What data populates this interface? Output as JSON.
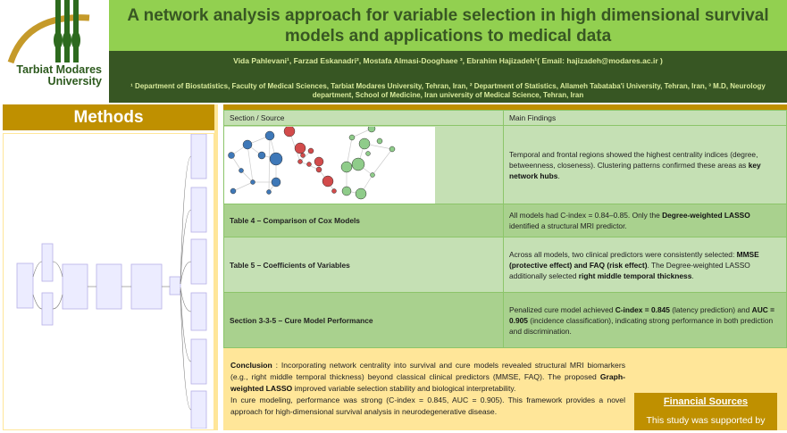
{
  "logo": {
    "text_line1": "Tarbiat Modares",
    "text_line2": "University"
  },
  "title": "A network analysis approach for variable selection in high dimensional survival models and applications to medical data",
  "authors": "Vida Pahlevani¹, Farzad Eskanadri², Mostafa Almasi-Dooghaee ³, Ebrahim Hajizadeh¹( Email: hajizadeh@modares.ac.ir )",
  "affiliations": "¹ Department of Biostatistics, Faculty of Medical Sciences, Tarbiat Modares University, Tehran, Iran, ² Department of Statistics, Allameh Tabataba'i University, Tehran, Iran, ³ M.D, Neurology department, School of Medicine, Iran university of Medical Science, Tehran, Iran",
  "methods": {
    "heading": "Methods"
  },
  "table": {
    "headers": [
      "Section / Source",
      "Main Findings"
    ],
    "rows": [
      {
        "source": "",
        "findings_pre": "Temporal and frontal regions showed the highest centrality indices (degree, betweenness, closeness). Clustering patterns confirmed these areas as ",
        "findings_bold": "key network hubs",
        "findings_post": "."
      },
      {
        "source": "Table 4 – Comparison of Cox Models",
        "findings_pre": "All models had C-index = 0.84–0.85. Only the ",
        "findings_bold": "Degree-weighted LASSO",
        "findings_post": " identified a structural MRI predictor."
      },
      {
        "source": "Table 5 – Coefficients of Variables",
        "findings_pre": "Across all models, two clinical predictors were consistently selected: ",
        "findings_bold": "MMSE (protective effect) and FAQ (risk effect)",
        "findings_post": ". The Degree-weighted LASSO additionally selected ",
        "findings_bold2": "right middle temporal thickness",
        "findings_post2": "."
      },
      {
        "source": "Section 3-3-5 – Cure Model Performance",
        "findings_pre": "Penalized cure model achieved ",
        "findings_bold": "C-index = 0.845",
        "findings_post": " (latency prediction) and ",
        "findings_bold2": "AUC = 0.905",
        "findings_post2": " (incidence classification), indicating strong performance in both prediction and discrimination."
      }
    ]
  },
  "conclusion": {
    "label": "Conclusion",
    "p1": " : Incorporating network centrality into survival and cure models revealed structural MRI biomarkers (e.g., right middle temporal thickness) beyond classical clinical predictors (MMSE, FAQ). The proposed ",
    "bold": "Graph-weighted LASSO",
    "p2": " improved variable selection stability and biological interpretability.",
    "p3": "In cure modeling, performance was strong (C-index = 0.845, AUC = 0.905). This framework provides a novel approach for high-dimensional survival analysis in neurodegenerative disease."
  },
  "financial": {
    "heading": "Financial Sources",
    "text": "This study was supported by"
  },
  "colors": {
    "title_band": "#92d050",
    "info_band": "#375623",
    "gold": "#bf9000",
    "cream": "#ffe699",
    "table_green": "#a9d18e"
  }
}
